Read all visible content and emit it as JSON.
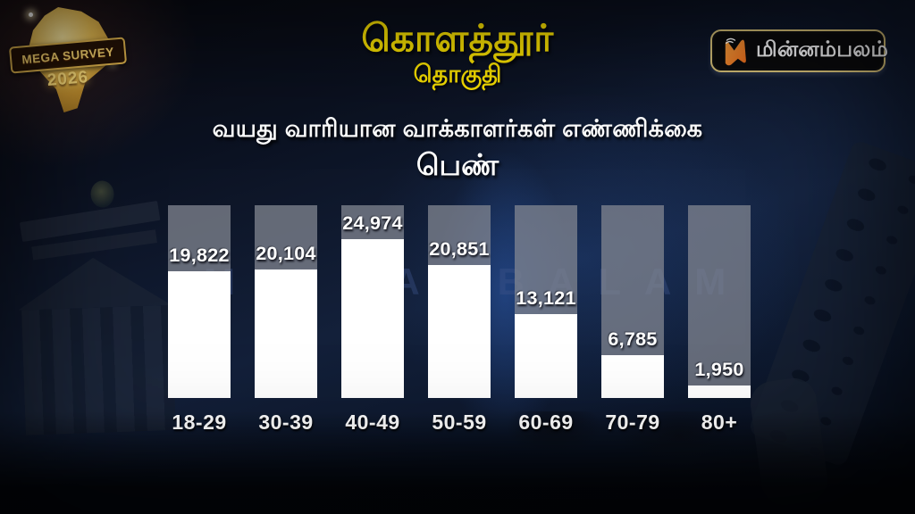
{
  "colors": {
    "accent_yellow": "#ffe600",
    "bar_fill": "#ffffff",
    "bar_track_gray": "#838792",
    "background_navy": "#13203a",
    "logo_orange": "#f47b20",
    "badge_gold": "#e6bc52",
    "watermark_blue": "#3c5288"
  },
  "badge": {
    "line1": "MEGA SURVEY",
    "line2": "2026"
  },
  "header": {
    "title": "கொளத்தூர்",
    "subtitle": "தொகுதி"
  },
  "channel": {
    "name": "மின்னம்பலம்",
    "icon": "minnambalam-m-icon"
  },
  "section": {
    "heading": "வயது வாரியான வாக்காளர்கள் எண்ணிக்கை",
    "category": "பெண்"
  },
  "watermark": "MINNAMBALAM",
  "chart_data": {
    "type": "bar",
    "title": "வயது வாரியான வாக்காளர்கள் எண்ணிக்கை (பெண்)",
    "categories": [
      "18-29",
      "30-39",
      "40-49",
      "50-59",
      "60-69",
      "70-79",
      "80+"
    ],
    "values": [
      19822,
      20104,
      24974,
      20851,
      13121,
      6785,
      1950
    ],
    "value_labels": [
      "19,822",
      "20,104",
      "24,974",
      "20,851",
      "13,121",
      "6,785",
      "1,950"
    ],
    "xlabel": "",
    "ylabel": "",
    "ylim": [
      0,
      30250
    ],
    "scale_max": 30250,
    "grid": false,
    "legend": false,
    "bar_color": "#ffffff",
    "track_color": "#838792"
  }
}
